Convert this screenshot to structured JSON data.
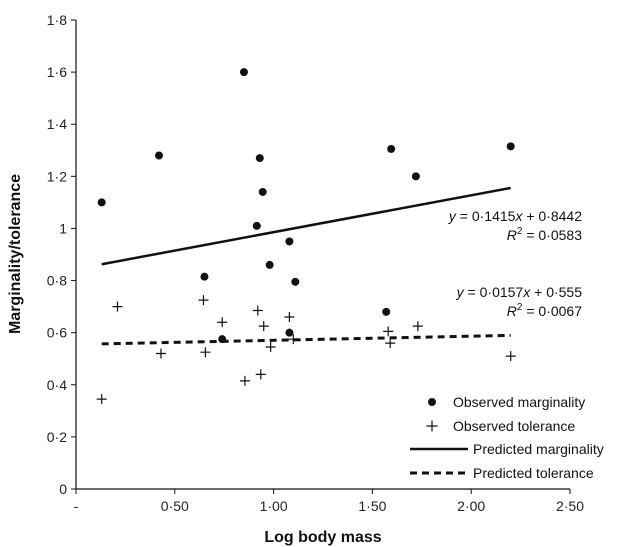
{
  "chart_data": {
    "type": "scatter",
    "title": "",
    "xlabel": "Log body mass",
    "ylabel": "Marginality/tolerance",
    "xlim": [
      0,
      2.5
    ],
    "ylim": [
      0,
      1.8
    ],
    "x_ticks": [
      {
        "value": 0,
        "label": "-"
      },
      {
        "value": 0.5,
        "label": "0·50"
      },
      {
        "value": 1.0,
        "label": "1·00"
      },
      {
        "value": 1.5,
        "label": "1·50"
      },
      {
        "value": 2.0,
        "label": "2·00"
      },
      {
        "value": 2.5,
        "label": "2·50"
      }
    ],
    "y_ticks": [
      {
        "value": 0,
        "label": "0"
      },
      {
        "value": 0.2,
        "label": "0·2"
      },
      {
        "value": 0.4,
        "label": "0·4"
      },
      {
        "value": 0.6,
        "label": "0·6"
      },
      {
        "value": 0.8,
        "label": "0·8"
      },
      {
        "value": 1.0,
        "label": "1"
      },
      {
        "value": 1.2,
        "label": "1·2"
      },
      {
        "value": 1.4,
        "label": "1·4"
      },
      {
        "value": 1.6,
        "label": "1·6"
      },
      {
        "value": 1.8,
        "label": "1·8"
      }
    ],
    "grid": false,
    "legend_position": "bottom-right",
    "series": [
      {
        "name": "Observed marginality",
        "kind": "points",
        "marker": "circle",
        "color": "#111111",
        "points": [
          [
            0.13,
            1.1
          ],
          [
            0.42,
            1.28
          ],
          [
            0.65,
            0.815
          ],
          [
            0.74,
            0.575
          ],
          [
            0.85,
            1.6
          ],
          [
            0.915,
            1.01
          ],
          [
            0.93,
            1.27
          ],
          [
            0.945,
            1.14
          ],
          [
            0.98,
            0.86
          ],
          [
            1.08,
            0.95
          ],
          [
            1.08,
            0.6
          ],
          [
            1.11,
            0.795
          ],
          [
            1.57,
            0.68
          ],
          [
            1.595,
            1.305
          ],
          [
            1.72,
            1.2
          ],
          [
            2.2,
            1.315
          ]
        ]
      },
      {
        "name": "Observed tolerance",
        "kind": "points",
        "marker": "plus",
        "color": "#111111",
        "points": [
          [
            0.13,
            0.345
          ],
          [
            0.21,
            0.7
          ],
          [
            0.43,
            0.52
          ],
          [
            0.645,
            0.725
          ],
          [
            0.655,
            0.525
          ],
          [
            0.74,
            0.64
          ],
          [
            0.855,
            0.415
          ],
          [
            0.92,
            0.685
          ],
          [
            0.935,
            0.44
          ],
          [
            0.95,
            0.625
          ],
          [
            0.985,
            0.545
          ],
          [
            1.08,
            0.66
          ],
          [
            1.1,
            0.575
          ],
          [
            1.58,
            0.605
          ],
          [
            1.59,
            0.56
          ],
          [
            1.73,
            0.625
          ],
          [
            2.2,
            0.51
          ]
        ]
      },
      {
        "name": "Predicted marginality",
        "kind": "line",
        "style": "solid",
        "color": "#111111",
        "x": [
          0.13,
          2.2
        ],
        "slope": 0.1415,
        "intercept": 0.8442
      },
      {
        "name": "Predicted tolerance",
        "kind": "line",
        "style": "dashed",
        "color": "#111111",
        "x": [
          0.13,
          2.2
        ],
        "slope": 0.0157,
        "intercept": 0.555
      }
    ],
    "annotations": {
      "marginality_eq": {
        "y": "y",
        "eq": " = 0·1415",
        "x": "x",
        "rest": " + 0·8442"
      },
      "marginality_r2": {
        "r": "R",
        "sup": "2",
        "val": " = 0·0583"
      },
      "tolerance_eq": {
        "y": "y",
        "eq": " = 0·0157",
        "x": "x",
        "rest": " + 0·555"
      },
      "tolerance_r2": {
        "r": "R",
        "sup": "2",
        "val": " = 0·0067"
      }
    }
  }
}
